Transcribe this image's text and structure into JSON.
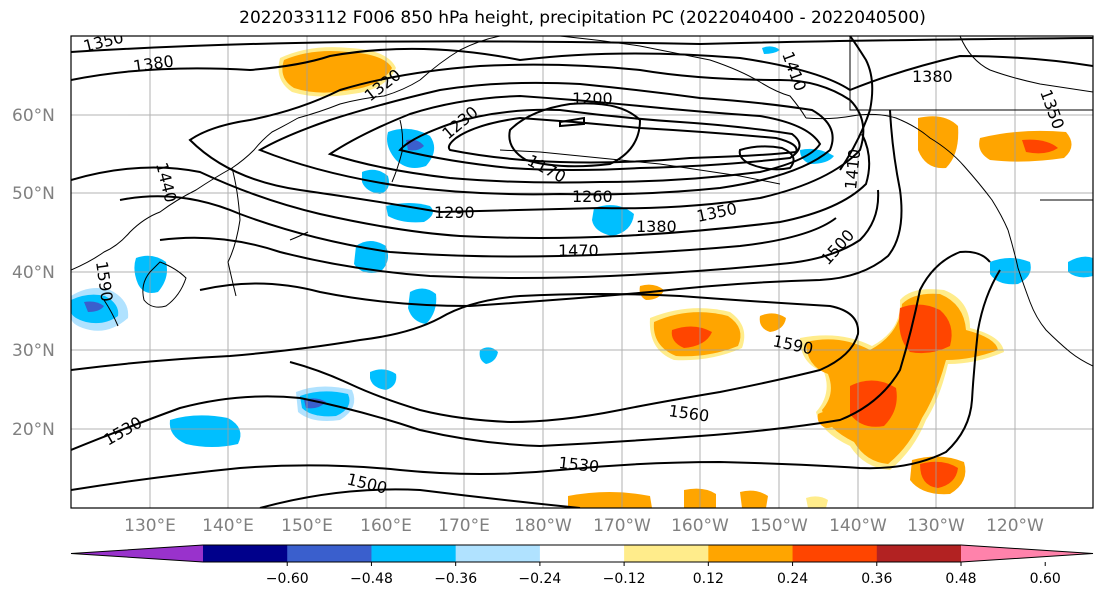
{
  "title": "2022033112 F006 850 hPa height, precipitation PC (2022040400 - 2022040500)",
  "lat_labels": [
    "60°N",
    "50°N",
    "40°N",
    "30°N",
    "20°N"
  ],
  "lon_labels": [
    "130°E",
    "140°E",
    "150°E",
    "160°E",
    "170°E",
    "180°W",
    "170°W",
    "160°W",
    "150°W",
    "140°W",
    "130°W",
    "120°W"
  ],
  "contour_labels": [
    "1350",
    "1380",
    "1320",
    "1230",
    "1200",
    "1170",
    "1260",
    "1290",
    "1380",
    "1350",
    "1470",
    "1410",
    "1500",
    "1380",
    "1350",
    "1440",
    "1590",
    "1560",
    "1530",
    "1530",
    "1500",
    "1410",
    "1590"
  ],
  "colorbar": {
    "ticks": [
      "−0.60",
      "−0.48",
      "−0.36",
      "−0.24",
      "−0.12",
      "0.12",
      "0.24",
      "0.36",
      "0.48",
      "0.60"
    ],
    "colors": [
      "#9932cc",
      "#00008b",
      "#3a5fcd",
      "#00bfff",
      "#b0e2ff",
      "#ffffff",
      "#ffec8b",
      "#ffa500",
      "#ff4500",
      "#b22222",
      "#ff82ab"
    ]
  },
  "colors": {
    "neg_strong": "#3a5fcd",
    "neg_mid": "#00bfff",
    "neg_light": "#b0e2ff",
    "pos_light": "#ffec8b",
    "pos_mid": "#ffa500",
    "pos_strong": "#ff4500",
    "grid": "#a0a0a0"
  }
}
